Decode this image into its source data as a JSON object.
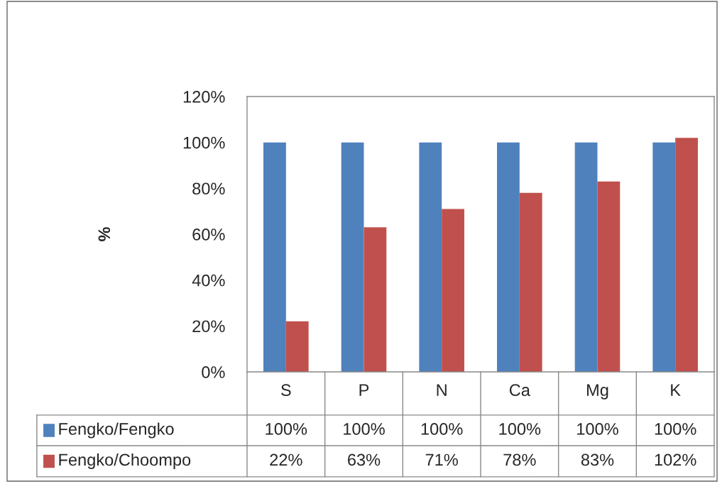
{
  "chart_data": {
    "type": "bar",
    "ylabel": "%",
    "categories": [
      "S",
      "P",
      "N",
      "Ca",
      "Mg",
      "K"
    ],
    "series": [
      {
        "name": "Fengko/Fengko",
        "color": "#4f81bd",
        "values": [
          100,
          100,
          100,
          100,
          100,
          100
        ],
        "value_labels": [
          "100%",
          "100%",
          "100%",
          "100%",
          "100%",
          "100%"
        ]
      },
      {
        "name": "Fengko/Choompo",
        "color": "#c0504d",
        "values": [
          22,
          63,
          71,
          78,
          83,
          102
        ],
        "value_labels": [
          "22%",
          "63%",
          "71%",
          "78%",
          "83%",
          "102%"
        ]
      }
    ],
    "ylim": [
      0,
      120
    ],
    "yticks": [
      {
        "value": 0,
        "label": "0%"
      },
      {
        "value": 20,
        "label": "20%"
      },
      {
        "value": 40,
        "label": "40%"
      },
      {
        "value": 60,
        "label": "60%"
      },
      {
        "value": 80,
        "label": "80%"
      },
      {
        "value": 100,
        "label": "100%"
      },
      {
        "value": 120,
        "label": "120%"
      }
    ],
    "grid": false,
    "legend": "bottom"
  }
}
